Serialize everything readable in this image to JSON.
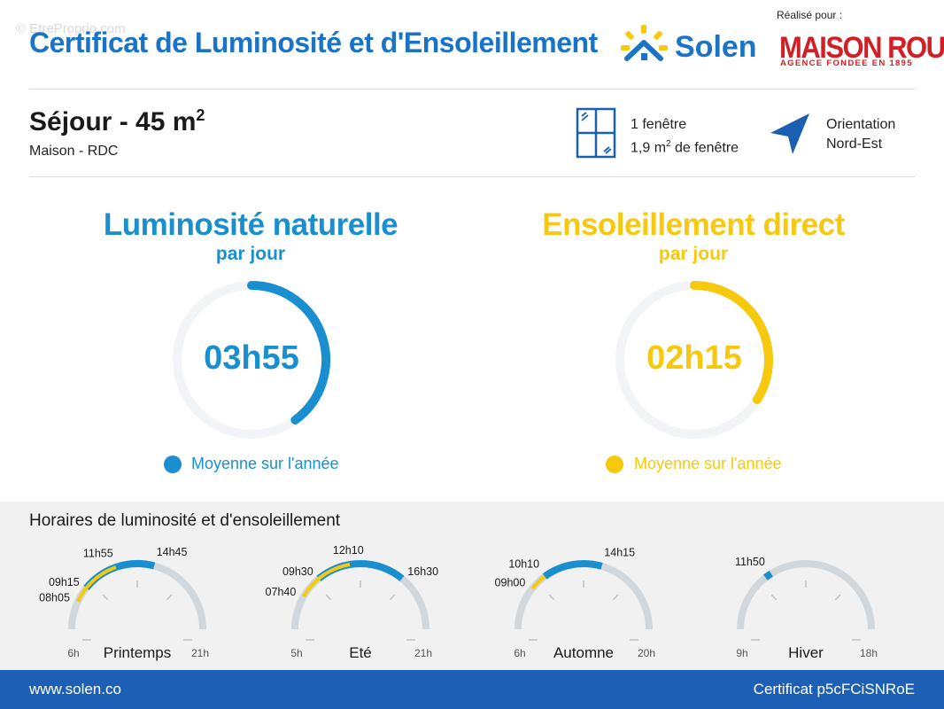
{
  "watermark": "© EtreProprio.com",
  "header": {
    "title": "Certificat de Luminosité et d'Ensoleillement",
    "brand": "Solen",
    "realise_pour": "Réalisé pour :",
    "client_name": "MAISON ROUGE",
    "client_tagline": "AGENCE FONDEE EN 1895"
  },
  "room": {
    "title": "Séjour - 45 m",
    "title_sup": "2",
    "subtitle": "Maison - RDC",
    "windows_count": "1 fenêtre",
    "window_area": "1,9 m",
    "window_area_sup": "2",
    "window_area_suffix": " de fenêtre",
    "orientation_label": "Orientation",
    "orientation_value": "Nord-Est"
  },
  "luminosite": {
    "title": "Luminosité naturelle",
    "subtitle": "par jour",
    "value": "03h55",
    "fraction": 0.4,
    "legend": "Moyenne sur l'année",
    "color": "#1a8fd0"
  },
  "ensoleillement": {
    "title": "Ensoleillement direct",
    "subtitle": "par jour",
    "value": "02h15",
    "fraction": 0.34,
    "legend": "Moyenne sur l'année",
    "color": "#f6c90e"
  },
  "horaires": {
    "title": "Horaires de luminosité et d'ensoleillement",
    "seasons": [
      {
        "name": "Printemps",
        "start": "6h",
        "end": "21h",
        "start_h": 6,
        "end_h": 21,
        "sun": {
          "from": 8.083,
          "to": 11.917
        },
        "light": {
          "from": 9.25,
          "to": 14.75
        },
        "labels": [
          {
            "text": "08h05",
            "h": 8.083
          },
          {
            "text": "09h15",
            "h": 9.25
          },
          {
            "text": "11h55",
            "h": 11.917
          },
          {
            "text": "14h45",
            "h": 14.75
          }
        ]
      },
      {
        "name": "Eté",
        "start": "5h",
        "end": "21h",
        "start_h": 5,
        "end_h": 21,
        "sun": {
          "from": 7.667,
          "to": 12.167
        },
        "light": {
          "from": 9.5,
          "to": 16.5
        },
        "labels": [
          {
            "text": "07h40",
            "h": 7.667
          },
          {
            "text": "09h30",
            "h": 9.5
          },
          {
            "text": "12h10",
            "h": 12.167
          },
          {
            "text": "16h30",
            "h": 16.5
          }
        ]
      },
      {
        "name": "Automne",
        "start": "6h",
        "end": "20h",
        "start_h": 6,
        "end_h": 20,
        "sun": {
          "from": 9.0,
          "to": 10.167
        },
        "light": {
          "from": 10.167,
          "to": 14.25
        },
        "labels": [
          {
            "text": "09h00",
            "h": 9.0
          },
          {
            "text": "10h10",
            "h": 10.167
          },
          {
            "text": "14h15",
            "h": 14.25
          }
        ]
      },
      {
        "name": "Hiver",
        "start": "9h",
        "end": "18h",
        "start_h": 9,
        "end_h": 18,
        "sun": null,
        "light": {
          "from": 11.6,
          "to": 11.9
        },
        "labels": [
          {
            "text": "11h50",
            "h": 11.833
          }
        ]
      }
    ]
  },
  "footer": {
    "website": "www.solen.co",
    "certificate": "Certificat p5cFCiSNRoE"
  },
  "colors": {
    "blue": "#1a8fd0",
    "yellow": "#f6c90e",
    "brand": "#1a73c7",
    "red": "#d21f26",
    "track": "#d0d7dd"
  }
}
